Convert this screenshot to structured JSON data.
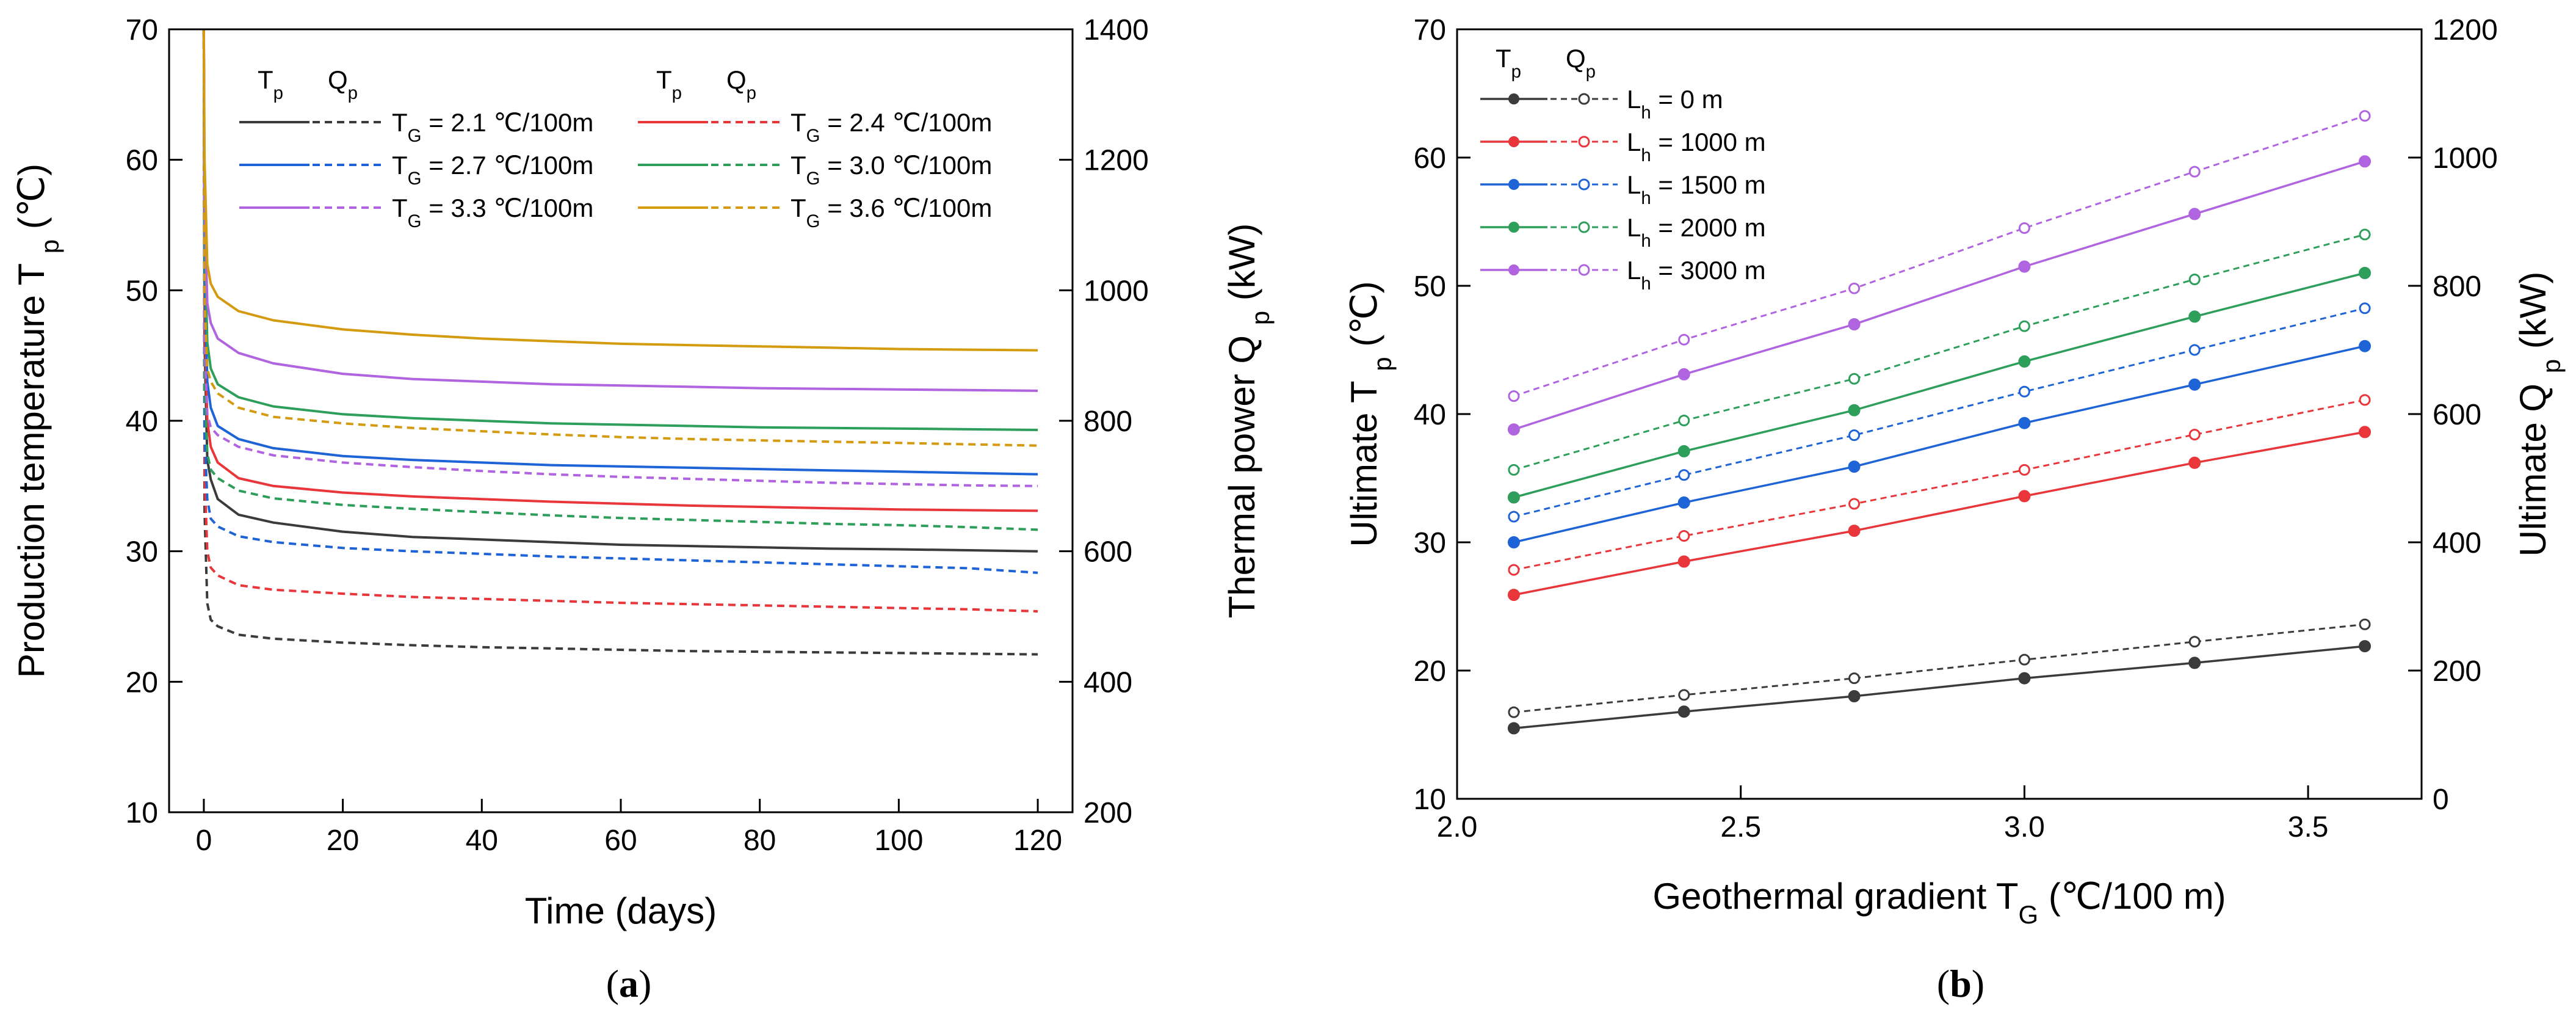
{
  "chart_data": [
    {
      "type": "line",
      "panel_label": "a",
      "xlabel": "Time (days)",
      "ylabel": "Production temperature T",
      "ylabel_sub": "p",
      "ylabel_unit": "(℃)",
      "y2label": "Thermal power Q",
      "y2label_sub": "p",
      "y2label_unit": "(kW)",
      "xlim": [
        -5,
        125
      ],
      "ylim": [
        10,
        70
      ],
      "y2lim": [
        200,
        1400
      ],
      "xticks": [
        0,
        20,
        40,
        60,
        80,
        100,
        120
      ],
      "yticks": [
        10,
        20,
        30,
        40,
        50,
        60,
        70
      ],
      "y2ticks": [
        200,
        400,
        600,
        800,
        1000,
        1200,
        1400
      ],
      "legend_col_headers": [
        "T",
        "Q"
      ],
      "legend_col_headers_sub": "p",
      "legend_item_label": "= {v} ℃/100m",
      "legend_symbol": "T",
      "legend_symbol_sub": "G",
      "x": [
        0,
        0.1,
        0.5,
        1,
        2,
        5,
        10,
        20,
        30,
        40,
        50,
        60,
        70,
        80,
        90,
        100,
        110,
        120
      ],
      "series": [
        {
          "name": "T_G = 2.1 ℃/100m",
          "gradient": "2.1",
          "color": "#3b3b3b",
          "tp": [
            70,
            46,
            37,
            35.5,
            34,
            32.8,
            32.2,
            31.5,
            31.1,
            30.9,
            30.7,
            30.5,
            30.4,
            30.3,
            30.2,
            30.15,
            30.08,
            30.0
          ],
          "qp": [
            1400,
            660,
            520,
            495,
            485,
            472,
            466,
            460,
            456,
            453,
            451,
            449,
            447,
            446,
            445,
            444,
            443,
            442
          ]
        },
        {
          "name": "T_G = 2.4 ℃/100m",
          "gradient": "2.4",
          "color": "#e8363b",
          "tp": [
            70,
            48,
            40,
            38,
            36.8,
            35.6,
            35,
            34.5,
            34.2,
            34,
            33.8,
            33.65,
            33.5,
            33.4,
            33.3,
            33.2,
            33.15,
            33.1
          ],
          "qp": [
            1400,
            720,
            600,
            575,
            563,
            548,
            541,
            535,
            530,
            527,
            524,
            521,
            519,
            517,
            515,
            513,
            511,
            508
          ]
        },
        {
          "name": "T_G = 2.7 ℃/100m",
          "gradient": "2.7",
          "color": "#1f64d6",
          "tp": [
            70,
            51,
            43,
            41,
            39.6,
            38.6,
            37.9,
            37.3,
            37,
            36.8,
            36.6,
            36.5,
            36.4,
            36.3,
            36.2,
            36.1,
            36.0,
            35.9
          ],
          "qp": [
            1400,
            780,
            680,
            650,
            638,
            623,
            614,
            605,
            600,
            596,
            592,
            589,
            586,
            583,
            580,
            577,
            574,
            567
          ]
        },
        {
          "name": "T_G = 3.0 ℃/100m",
          "gradient": "3.0",
          "color": "#2e9e5b",
          "tp": [
            70,
            54,
            46,
            44,
            42.8,
            41.8,
            41.1,
            40.5,
            40.2,
            40,
            39.8,
            39.7,
            39.6,
            39.5,
            39.45,
            39.4,
            39.35,
            39.3
          ],
          "qp": [
            1400,
            850,
            750,
            725,
            712,
            693,
            681,
            671,
            665,
            660,
            655,
            651,
            648,
            645,
            642,
            640,
            637,
            633
          ]
        },
        {
          "name": "T_G = 3.3 ℃/100m",
          "gradient": "3.3",
          "color": "#b064e0",
          "tp": [
            70,
            57,
            49,
            47.5,
            46.3,
            45.2,
            44.4,
            43.6,
            43.2,
            43,
            42.8,
            42.7,
            42.6,
            42.5,
            42.45,
            42.4,
            42.35,
            42.3
          ],
          "qp": [
            1400,
            920,
            810,
            790,
            778,
            760,
            747,
            736,
            729,
            723,
            718,
            714,
            711,
            708,
            705,
            703,
            701,
            700
          ]
        },
        {
          "name": "T_G = 3.6 ℃/100m",
          "gradient": "3.6",
          "color": "#d49a10",
          "tp": [
            70,
            60,
            52,
            50.5,
            49.5,
            48.4,
            47.7,
            47,
            46.6,
            46.3,
            46.1,
            45.9,
            45.8,
            45.7,
            45.6,
            45.5,
            45.45,
            45.4
          ],
          "qp": [
            1400,
            990,
            880,
            860,
            842,
            820,
            806,
            796,
            789,
            784,
            779,
            775,
            772,
            770,
            768,
            766,
            764,
            762
          ]
        }
      ]
    },
    {
      "type": "line",
      "panel_label": "b",
      "xlabel": "Geothermal gradient T",
      "xlabel_sub": "G",
      "xlabel_unit": "(℃/100 m)",
      "ylabel": "Ultimate T",
      "ylabel_sub": "p",
      "ylabel_unit": "(℃)",
      "y2label": "Ultimate Q",
      "y2label_sub": "p",
      "y2label_unit": "(kW)",
      "xlim": [
        2.0,
        3.7
      ],
      "ylim": [
        10,
        70
      ],
      "y2lim": [
        0,
        1200
      ],
      "xticks": [
        "2.0",
        "2.5",
        "3.0",
        "3.5"
      ],
      "yticks": [
        10,
        20,
        30,
        40,
        50,
        60,
        70
      ],
      "y2ticks": [
        0,
        200,
        400,
        600,
        800,
        1000,
        1200
      ],
      "legend_col_headers": [
        "T",
        "Q"
      ],
      "legend_col_headers_sub": "p",
      "legend_symbol": "L",
      "legend_symbol_sub": "h",
      "x": [
        2.1,
        2.4,
        2.7,
        3.0,
        3.3,
        3.6
      ],
      "series": [
        {
          "name": "= 0 m",
          "color": "#3b3b3b",
          "tp": [
            15.5,
            16.8,
            18,
            19.4,
            20.6,
            21.9
          ],
          "qp": [
            135,
            162,
            188,
            217,
            245,
            272
          ]
        },
        {
          "name": "= 1000 m",
          "color": "#e8363b",
          "tp": [
            25.9,
            28.5,
            30.9,
            33.6,
            36.2,
            38.6
          ],
          "qp": [
            357,
            410,
            460,
            513,
            568,
            622
          ]
        },
        {
          "name": "= 1500 m",
          "color": "#1f64d6",
          "tp": [
            30,
            33.1,
            35.9,
            39.3,
            42.3,
            45.3
          ],
          "qp": [
            440,
            505,
            567,
            635,
            700,
            765
          ]
        },
        {
          "name": "= 2000 m",
          "color": "#2e9e5b",
          "tp": [
            33.5,
            37.1,
            40.3,
            44.1,
            47.6,
            51
          ],
          "qp": [
            513,
            590,
            655,
            737,
            810,
            880
          ]
        },
        {
          "name": "= 3000 m",
          "color": "#b064e0",
          "tp": [
            38.8,
            43.1,
            47,
            51.5,
            55.6,
            59.7
          ],
          "qp": [
            628,
            716,
            796,
            890,
            978,
            1065
          ]
        }
      ]
    }
  ]
}
